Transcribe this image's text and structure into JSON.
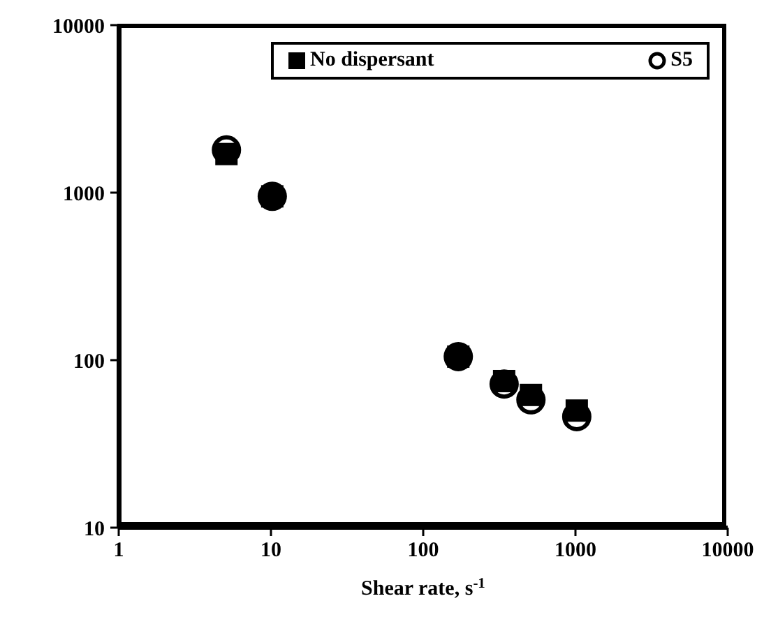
{
  "chart_data": {
    "type": "scatter",
    "xlabel": "Shear rate, s$^{-1}$",
    "log": "xy",
    "xlim": [
      1,
      10000
    ],
    "xticks": [
      1,
      10,
      100,
      1000,
      10000
    ],
    "ylim": [
      10,
      10000
    ],
    "yticks": [
      10,
      100,
      1000,
      10000
    ],
    "legend": "top right",
    "series": [
      {
        "name": "No dispersant",
        "color": "#000000",
        "marker": "square",
        "x": [
          5.1,
          10.2,
          170,
          340,
          510,
          1020
        ],
        "values": [
          1700,
          950,
          105,
          75,
          62,
          50
        ]
      },
      {
        "name": "S5",
        "color": "#000000",
        "marker": "circle",
        "x": [
          5.1,
          10.2,
          170,
          340,
          510,
          1020
        ],
        "values": [
          1800,
          950,
          105,
          72,
          58,
          46
        ]
      }
    ]
  }
}
